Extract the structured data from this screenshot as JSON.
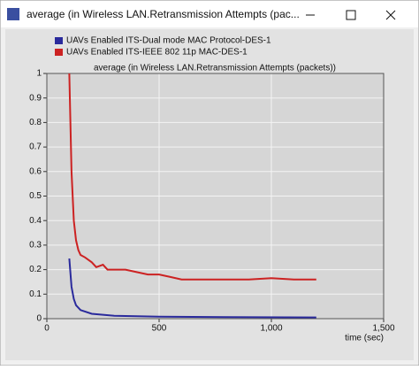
{
  "window": {
    "title": "average (in Wireless LAN.Retransmission Attempts (pac..."
  },
  "chart_data": {
    "type": "line",
    "title": "average (in Wireless LAN.Retransmission Attempts (packets))",
    "xlabel": "time (sec)",
    "xlim": [
      0,
      1500
    ],
    "xticks": [
      0,
      500,
      {
        "value": 1000,
        "label": "1,000"
      },
      {
        "value": 1500,
        "label": "1,500"
      }
    ],
    "ylim": [
      0,
      1
    ],
    "yticks": [
      0,
      0.1,
      0.2,
      0.3,
      0.4,
      0.5,
      0.6,
      0.7,
      0.8,
      0.9,
      1
    ],
    "grid": true,
    "legend": "top-left",
    "series": [
      {
        "name": "UAVs Enabled ITS-Dual mode MAC Protocol-DES-1",
        "color": "#2a2a9c",
        "x": [
          100,
          110,
          120,
          130,
          150,
          200,
          300,
          500,
          800,
          1200
        ],
        "values": [
          0.245,
          0.13,
          0.08,
          0.055,
          0.035,
          0.02,
          0.012,
          0.008,
          0.006,
          0.005
        ]
      },
      {
        "name": "UAVs Enabled ITS-IEEE 802 11p MAC-DES-1",
        "color": "#cc2222",
        "x": [
          100,
          110,
          120,
          130,
          140,
          150,
          170,
          200,
          220,
          250,
          270,
          300,
          350,
          400,
          450,
          500,
          550,
          600,
          700,
          800,
          900,
          1000,
          1100,
          1200
        ],
        "values": [
          1.0,
          0.6,
          0.4,
          0.32,
          0.28,
          0.26,
          0.25,
          0.23,
          0.21,
          0.22,
          0.2,
          0.2,
          0.2,
          0.19,
          0.18,
          0.18,
          0.17,
          0.16,
          0.16,
          0.16,
          0.16,
          0.165,
          0.16,
          0.16
        ]
      }
    ]
  }
}
